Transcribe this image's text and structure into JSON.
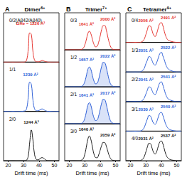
{
  "chart_data": [
    {
      "type": "line",
      "letter": "A",
      "title": "Dimer",
      "title_superscript": "6+",
      "xlabel": "Drift time (ms)",
      "xlim": [
        17,
        53
      ],
      "xticks": [
        20,
        30,
        40,
        50
      ],
      "ylim": [
        0,
        1.6
      ],
      "tick_labels": "x",
      "x": [
        17,
        18,
        19,
        20,
        21,
        22,
        23,
        24,
        25,
        26,
        27,
        28,
        29,
        30,
        31,
        32,
        33,
        34,
        35,
        36,
        37,
        38,
        39,
        40,
        41,
        42,
        43,
        44,
        45,
        46,
        47,
        48,
        49,
        50,
        51,
        52,
        53
      ],
      "rows": [
        {
          "label": "0/2(Aβ42/Aβ40)",
          "series": [
            {
              "color": "#e5322d",
              "values": [
                0,
                0,
                0,
                0,
                0,
                0,
                0,
                0,
                0,
                0,
                0,
                0,
                0,
                0,
                0.01,
                0.07,
                0.4,
                0.95,
                0.9,
                0.38,
                0.08,
                0.02,
                0.01,
                0.01,
                0.03,
                0.05,
                0.04,
                0.02,
                0.01,
                0,
                0,
                0,
                0,
                0,
                0,
                0,
                0
              ]
            }
          ],
          "annotations": [
            {
              "text": "ΩHe = 1226 Å²",
              "x": 34.5,
              "y": 1.25
            }
          ]
        },
        {
          "label": "1/1",
          "series": [
            {
              "color": "#2c5ed6",
              "values": [
                0,
                0,
                0,
                0,
                0,
                0,
                0,
                0,
                0,
                0,
                0,
                0,
                0,
                0.01,
                0.02,
                0.1,
                0.45,
                0.95,
                0.88,
                0.4,
                0.1,
                0.03,
                0.02,
                0.03,
                0.06,
                0.08,
                0.06,
                0.03,
                0.01,
                0,
                0,
                0,
                0,
                0,
                0,
                0,
                0
              ]
            }
          ],
          "annotations": [
            {
              "text": "1239 Å²",
              "x": 34.5,
              "y": 1.2
            }
          ]
        },
        {
          "label": "2/0",
          "series": [
            {
              "color": "#1a1a1a",
              "values": [
                0,
                0,
                0,
                0,
                0,
                0,
                0,
                0,
                0,
                0,
                0,
                0,
                0,
                0,
                0,
                0.02,
                0.15,
                0.6,
                1.0,
                0.7,
                0.25,
                0.06,
                0.03,
                0.04,
                0.08,
                0.1,
                0.08,
                0.04,
                0.01,
                0,
                0,
                0,
                0,
                0,
                0,
                0,
                0
              ]
            }
          ],
          "annotations": [
            {
              "text": "1244 Å²",
              "x": 35,
              "y": 1.25
            }
          ]
        }
      ]
    },
    {
      "type": "line",
      "letter": "B",
      "title": "Trimer",
      "title_superscript": "7+",
      "xlabel": "Drift time (ms)",
      "xlim": [
        17,
        53
      ],
      "xticks": [
        20,
        30,
        40,
        50
      ],
      "ylim": [
        0,
        1.5
      ],
      "tick_labels": "x",
      "x": [
        17,
        18,
        19,
        20,
        21,
        22,
        23,
        24,
        25,
        26,
        27,
        28,
        29,
        30,
        31,
        32,
        33,
        34,
        35,
        36,
        37,
        38,
        39,
        40,
        41,
        42,
        43,
        44,
        45,
        46,
        47,
        48,
        49,
        50,
        51,
        52,
        53
      ],
      "rows": [
        {
          "label": "0/3",
          "series": [
            {
              "color": "#e5322d",
              "values": [
                0,
                0,
                0,
                0,
                0,
                0,
                0,
                0,
                0,
                0,
                0,
                0.02,
                0.06,
                0.19,
                0.4,
                0.65,
                0.75,
                0.65,
                0.42,
                0.22,
                0.12,
                0.14,
                0.3,
                0.55,
                0.82,
                0.98,
                0.98,
                0.8,
                0.52,
                0.27,
                0.1,
                0.03,
                0.01,
                0,
                0,
                0,
                0
              ]
            }
          ],
          "annotations": [
            {
              "text": "1641 Å²",
              "x": 31,
              "y": 1.05
            },
            {
              "text": "2000 Å²",
              "x": 45,
              "y": 1.25
            }
          ]
        },
        {
          "label": "1/2",
          "series": [
            {
              "color": "#2c5ed6",
              "type": "area",
              "values": [
                0,
                0,
                0,
                0,
                0,
                0,
                0,
                0,
                0,
                0,
                0,
                0.02,
                0.07,
                0.2,
                0.43,
                0.7,
                0.8,
                0.7,
                0.45,
                0.23,
                0.12,
                0.14,
                0.3,
                0.56,
                0.83,
                0.99,
                0.97,
                0.78,
                0.5,
                0.25,
                0.09,
                0.03,
                0.01,
                0,
                0,
                0,
                0
              ]
            }
          ],
          "annotations": [
            {
              "text": "1657 Å²",
              "x": 31,
              "y": 1.1
            },
            {
              "text": "2022 Å²",
              "x": 45,
              "y": 1.25
            }
          ]
        },
        {
          "label": "2/1",
          "series": [
            {
              "color": "#2c5ed6",
              "type": "area",
              "values": [
                0,
                0,
                0,
                0,
                0,
                0,
                0,
                0,
                0,
                0,
                0,
                0.02,
                0.07,
                0.21,
                0.46,
                0.74,
                0.85,
                0.74,
                0.47,
                0.24,
                0.13,
                0.15,
                0.31,
                0.57,
                0.84,
                0.99,
                0.97,
                0.78,
                0.5,
                0.25,
                0.09,
                0.03,
                0.01,
                0,
                0,
                0,
                0
              ]
            }
          ],
          "annotations": [
            {
              "text": "1641 Å²",
              "x": 31,
              "y": 1.15
            },
            {
              "text": "2017 Å²",
              "x": 45,
              "y": 1.25
            }
          ]
        },
        {
          "label": "3/0",
          "series": [
            {
              "color": "#1a1a1a",
              "values": [
                0,
                0,
                0,
                0,
                0,
                0,
                0,
                0,
                0,
                0,
                0,
                0.03,
                0.08,
                0.25,
                0.54,
                0.86,
                1.0,
                0.86,
                0.55,
                0.27,
                0.13,
                0.12,
                0.23,
                0.42,
                0.62,
                0.74,
                0.73,
                0.59,
                0.38,
                0.19,
                0.07,
                0.02,
                0.01,
                0,
                0,
                0,
                0
              ]
            }
          ],
          "annotations": [
            {
              "text": "1646 Å²",
              "x": 31,
              "y": 1.28
            },
            {
              "text": "2059 Å²",
              "x": 45,
              "y": 1.05
            }
          ]
        }
      ]
    },
    {
      "type": "line",
      "letter": "C",
      "title": "Tetramer",
      "title_superscript": "9+",
      "xlabel": "Drift time (ms)",
      "xlim": [
        17,
        53
      ],
      "xticks": [
        20,
        30,
        40,
        50
      ],
      "ylim": [
        0,
        1.5
      ],
      "tick_labels": "x",
      "x": [
        17,
        18,
        19,
        20,
        21,
        22,
        23,
        24,
        25,
        26,
        27,
        28,
        29,
        30,
        31,
        32,
        33,
        34,
        35,
        36,
        37,
        38,
        39,
        40,
        41,
        42,
        43,
        44,
        45,
        46,
        47,
        48,
        49,
        50,
        51,
        52,
        53
      ],
      "rows": [
        {
          "label": "0/4",
          "series": [
            {
              "color": "#e5322d",
              "values": [
                0,
                0,
                0,
                0,
                0,
                0,
                0,
                0,
                0,
                0,
                0.02,
                0.06,
                0.18,
                0.4,
                0.65,
                0.84,
                0.82,
                0.6,
                0.38,
                0.3,
                0.45,
                0.72,
                0.95,
                1.0,
                0.85,
                0.55,
                0.3,
                0.15,
                0.09,
                0.06,
                0.04,
                0.02,
                0.01,
                0,
                0,
                0,
                0
              ]
            }
          ],
          "annotations": [
            {
              "text": "2056 Å²",
              "x": 30,
              "y": 1.1
            },
            {
              "text": "2491 Å²",
              "x": 44.5,
              "y": 1.25
            }
          ]
        },
        {
          "label": "1/3",
          "series": [
            {
              "color": "#2c5ed6",
              "values": [
                0,
                0,
                0,
                0,
                0,
                0,
                0,
                0,
                0,
                0,
                0.03,
                0.08,
                0.2,
                0.42,
                0.6,
                0.78,
                0.75,
                0.58,
                0.4,
                0.35,
                0.48,
                0.7,
                0.92,
                1.0,
                0.82,
                0.6,
                0.36,
                0.2,
                0.12,
                0.08,
                0.05,
                0.02,
                0.01,
                0,
                0,
                0,
                0
              ]
            }
          ],
          "annotations": [
            {
              "text": "2051 Å²",
              "x": 30,
              "y": 1.1
            },
            {
              "text": "2522 Å²",
              "x": 44.5,
              "y": 1.25
            }
          ]
        },
        {
          "label": "2/2",
          "series": [
            {
              "color": "#2c5ed6",
              "values": [
                0,
                0,
                0,
                0,
                0,
                0,
                0,
                0,
                0,
                0,
                0.02,
                0.07,
                0.19,
                0.38,
                0.58,
                0.74,
                0.72,
                0.56,
                0.4,
                0.36,
                0.5,
                0.74,
                0.94,
                1.0,
                0.84,
                0.58,
                0.34,
                0.18,
                0.1,
                0.07,
                0.04,
                0.02,
                0.01,
                0,
                0,
                0,
                0
              ]
            }
          ],
          "annotations": [
            {
              "text": "2041 Å²",
              "x": 30,
              "y": 1.1
            },
            {
              "text": "2541 Å²",
              "x": 44.5,
              "y": 1.25
            }
          ]
        },
        {
          "label": "3/1",
          "series": [
            {
              "color": "#2c5ed6",
              "values": [
                0,
                0,
                0,
                0,
                0,
                0,
                0,
                0,
                0,
                0,
                0.02,
                0.07,
                0.2,
                0.41,
                0.62,
                0.79,
                0.76,
                0.57,
                0.4,
                0.35,
                0.47,
                0.7,
                0.9,
                0.95,
                0.8,
                0.56,
                0.33,
                0.18,
                0.1,
                0.06,
                0.04,
                0.02,
                0.01,
                0,
                0,
                0,
                0
              ]
            }
          ],
          "annotations": [
            {
              "text": "2030 Å²",
              "x": 30,
              "y": 1.1
            },
            {
              "text": "2540 Å²",
              "x": 44.5,
              "y": 1.25
            }
          ]
        },
        {
          "label": "4/0",
          "series": [
            {
              "color": "#1a1a1a",
              "values": [
                0,
                0,
                0,
                0,
                0,
                0,
                0,
                0,
                0,
                0,
                0.03,
                0.08,
                0.22,
                0.45,
                0.7,
                0.88,
                0.86,
                0.64,
                0.42,
                0.34,
                0.46,
                0.72,
                0.94,
                1.0,
                0.86,
                0.58,
                0.32,
                0.16,
                0.09,
                0.05,
                0.03,
                0.02,
                0.01,
                0,
                0,
                0,
                0
              ]
            }
          ],
          "annotations": [
            {
              "text": "2031 Å²",
              "x": 30,
              "y": 1.1
            },
            {
              "text": "2537 Å²",
              "x": 44.5,
              "y": 1.25
            }
          ]
        }
      ]
    }
  ]
}
